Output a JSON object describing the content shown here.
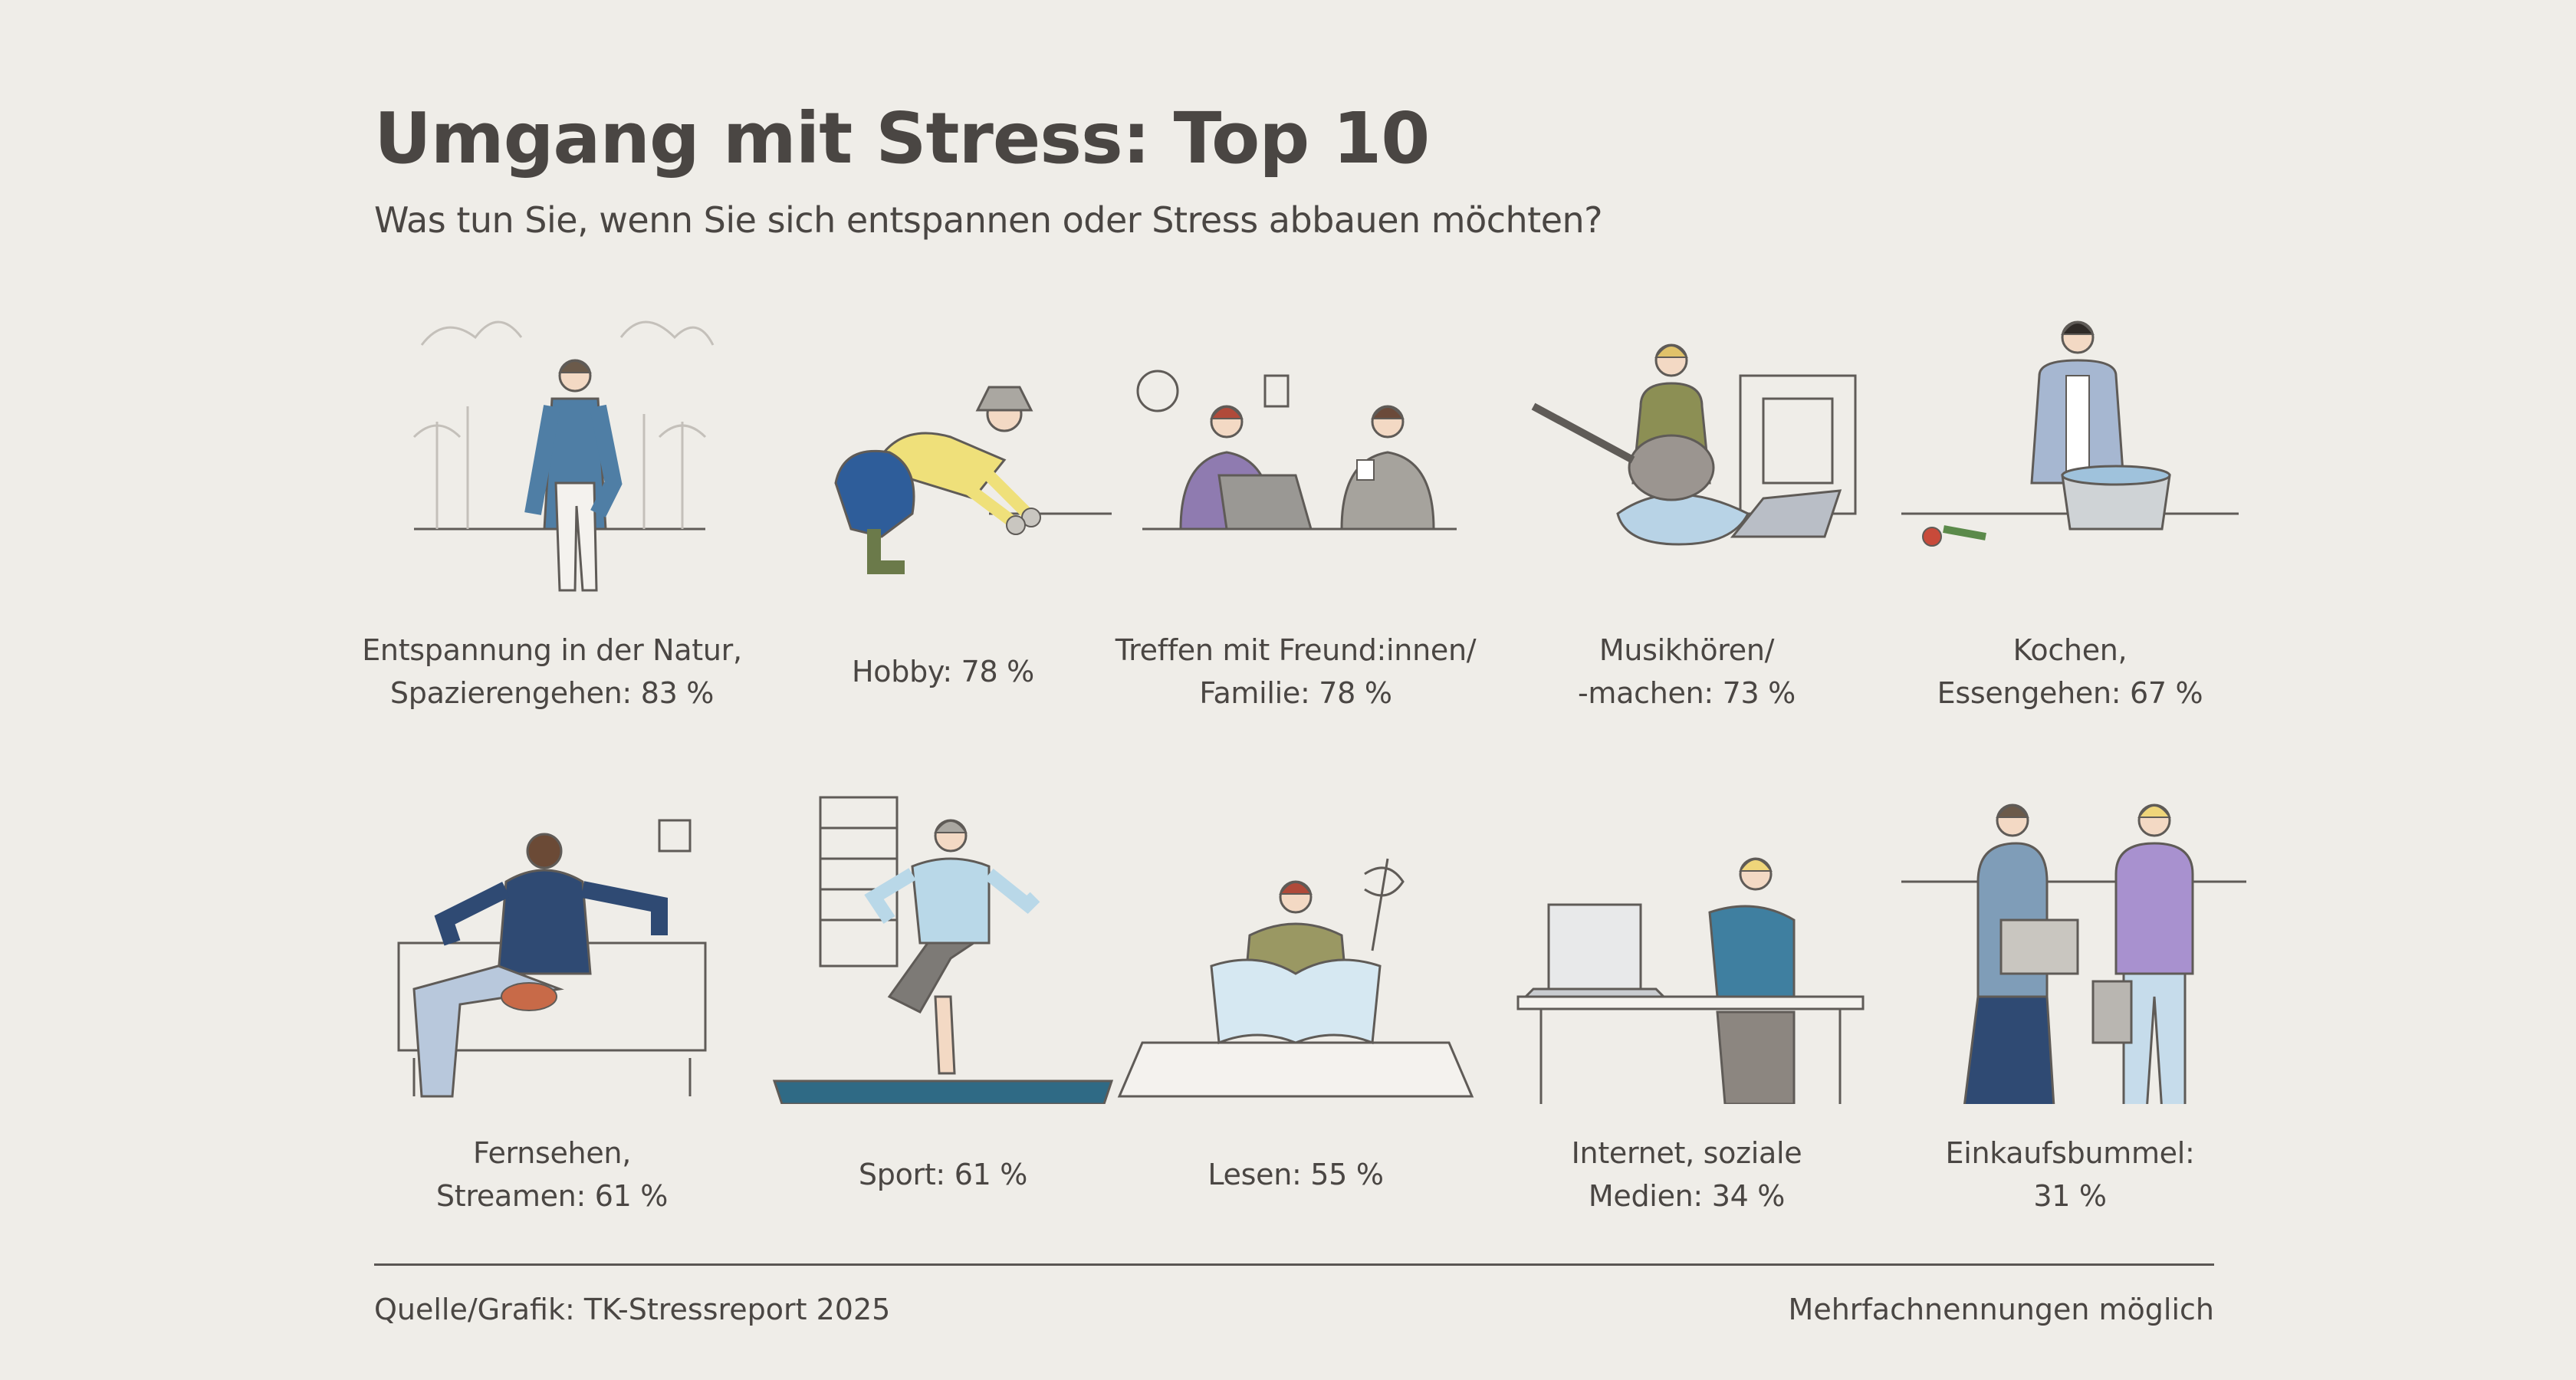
{
  "title": "Umgang mit Stress: Top 10",
  "subtitle": "Was tun Sie, wenn Sie sich entspannen oder Stress abbauen möchten?",
  "chart_data": {
    "type": "table",
    "title": "Umgang mit Stress: Top 10",
    "subtitle": "Was tun Sie, wenn Sie sich entspannen oder Stress abbauen möchten?",
    "unit": "%",
    "items": [
      {
        "line1": "Entspannung in der Natur,",
        "line2": "Spazierengehen: 83 %",
        "value": 83,
        "icon": "person-walking-nature-icon"
      },
      {
        "line1": "",
        "line2": "Hobby: 78 %",
        "value": 78,
        "icon": "person-gardening-icon"
      },
      {
        "line1": "Treffen mit Freund:innen/",
        "line2": "Familie: 78 %",
        "value": 78,
        "icon": "friends-meeting-icon"
      },
      {
        "line1": "Musikhören/",
        "line2": "-machen: 73 %",
        "value": 73,
        "icon": "guitar-player-icon"
      },
      {
        "line1": "Kochen,",
        "line2": "Essengehen: 67 %",
        "value": 67,
        "icon": "person-cooking-icon"
      },
      {
        "line1": "Fernsehen,",
        "line2": "Streamen: 61 %",
        "value": 61,
        "icon": "person-on-sofa-icon"
      },
      {
        "line1": "",
        "line2": "Sport: 61 %",
        "value": 61,
        "icon": "person-doing-sport-icon"
      },
      {
        "line1": "",
        "line2": "Lesen: 55 %",
        "value": 55,
        "icon": "person-reading-icon"
      },
      {
        "line1": "Internet, soziale",
        "line2": "Medien: 34 %",
        "value": 34,
        "icon": "person-with-laptop-icon"
      },
      {
        "line1": "Einkaufsbummel:",
        "line2": "31 %",
        "value": 31,
        "icon": "shopping-women-icon"
      }
    ]
  },
  "footer": {
    "source": "Quelle/Grafik: TK-Stressreport 2025",
    "note": "Mehrfachnennungen möglich"
  },
  "colors": {
    "background": "#efede8",
    "text": "#4a4643",
    "line": "#5a5653",
    "accent_blue": "#4a6f95",
    "accent_yellow": "#efe07a"
  }
}
